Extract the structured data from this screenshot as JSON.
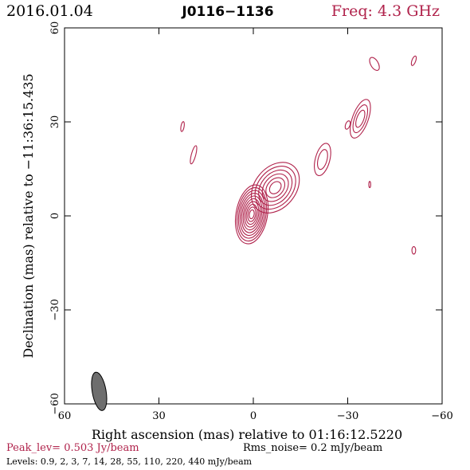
{
  "header": {
    "date": "2016.01.04",
    "source": "J0116−1136",
    "freq": "Freq: 4.3 GHz"
  },
  "footer": {
    "peak": "Peak_lev=  0.503 Jy/beam",
    "rms": "Rms_noise=  0.2 mJy/beam",
    "levels": "Levels: 0.9,   2,   3,   7,  14,  28,  55, 110, 220, 440 mJy/beam"
  },
  "colors": {
    "contour": "#b0224b",
    "beam": "#6e6e6e",
    "frame": "#000000"
  },
  "chart_data": {
    "type": "contour",
    "xlabel": "Right ascension (mas) relative to 01:16:12.5220",
    "ylabel": "Declination (mas) relative to −11:36:15.435",
    "xlim": [
      60,
      -60
    ],
    "ylim": [
      -60,
      60
    ],
    "x_ticks": [
      60,
      30,
      0,
      -30,
      -60
    ],
    "y_ticks": [
      -60,
      -30,
      0,
      30,
      60
    ],
    "x_tick_labels": [
      "60",
      "30",
      "0",
      "−30",
      "−60"
    ],
    "y_tick_labels": [
      "−60",
      "−30",
      "0",
      "30",
      "60"
    ],
    "levels_mJy_per_beam": [
      0.9,
      2,
      3,
      7,
      14,
      28,
      55,
      110,
      220,
      440
    ],
    "peak_Jy_per_beam": 0.503,
    "rms_noise_mJy_per_beam": 0.2,
    "beam": {
      "x": 49,
      "y": -56,
      "major_mas": 6.2,
      "minor_mas": 2.2,
      "pa_deg": -10
    },
    "components": [
      {
        "name": "core",
        "x": 0.5,
        "y": 0.5,
        "rx": 5.0,
        "ry": 9.5,
        "rot": 10,
        "n": 10
      },
      {
        "name": "jet-inner",
        "x": -7,
        "y": 9,
        "rx": 6.5,
        "ry": 9.0,
        "rot": 40,
        "n": 6
      },
      {
        "name": "knot-b",
        "x": -22,
        "y": 18,
        "rx": 2.3,
        "ry": 5.3,
        "rot": 15,
        "n": 2
      },
      {
        "name": "knot-c",
        "x": -34,
        "y": 31,
        "rx": 2.5,
        "ry": 6.5,
        "rot": 20,
        "n": 3
      },
      {
        "name": "blob-d",
        "x": -30,
        "y": 29,
        "rx": 0.7,
        "ry": 1.4,
        "rot": 20,
        "n": 1
      },
      {
        "name": "blob-e",
        "x": -38.5,
        "y": 48.5,
        "rx": 1.2,
        "ry": 2.3,
        "rot": -30,
        "n": 1
      },
      {
        "name": "blob-f",
        "x": -51,
        "y": 49.5,
        "rx": 0.6,
        "ry": 1.6,
        "rot": 20,
        "n": 1
      },
      {
        "name": "blob-g",
        "x": -37,
        "y": 10,
        "rx": 0.3,
        "ry": 1.0,
        "rot": 0,
        "n": 1
      },
      {
        "name": "blob-h",
        "x": -51,
        "y": -11,
        "rx": 0.6,
        "ry": 1.2,
        "rot": 0,
        "n": 1
      },
      {
        "name": "blob-i",
        "x": 22.5,
        "y": 28.5,
        "rx": 0.5,
        "ry": 1.6,
        "rot": 10,
        "n": 1
      },
      {
        "name": "blob-j",
        "x": 19,
        "y": 19.5,
        "rx": 0.7,
        "ry": 3.0,
        "rot": 15,
        "n": 1
      }
    ]
  }
}
